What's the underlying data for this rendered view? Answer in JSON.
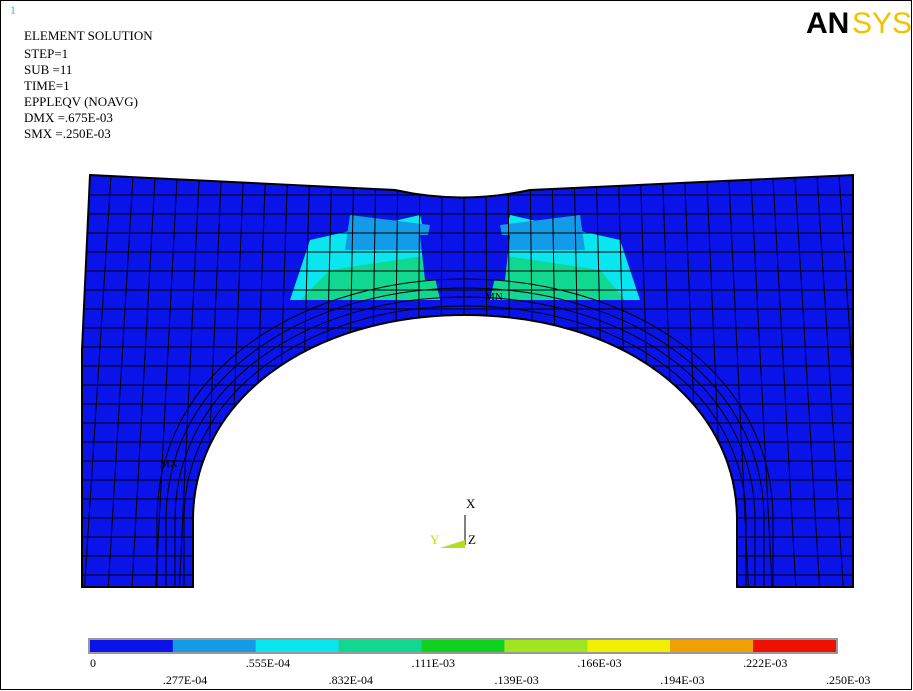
{
  "window_number": "1",
  "logo": {
    "left": "AN",
    "right": "SYS"
  },
  "header": [
    "ELEMENT SOLUTION",
    "STEP=1",
    "SUB =11",
    "TIME=1",
    "EPPLEQV  (NOAVG)",
    "DMX =.675E-03",
    "SMX =.250E-03"
  ],
  "markers": {
    "min": "MN",
    "max": "MX"
  },
  "triad": {
    "x": "X",
    "y": "Y",
    "z": "Z"
  },
  "legend": {
    "colors": [
      "#0a14e8",
      "#149be8",
      "#0ae6f0",
      "#10d890",
      "#10d020",
      "#a0e620",
      "#f0f000",
      "#f0a000",
      "#f01000"
    ],
    "labels": [
      "0",
      ".277E-04",
      ".555E-04",
      ".832E-04",
      ".111E-03",
      ".139E-03",
      ".166E-03",
      ".194E-03",
      ".222E-03",
      ".250E-03"
    ]
  }
}
